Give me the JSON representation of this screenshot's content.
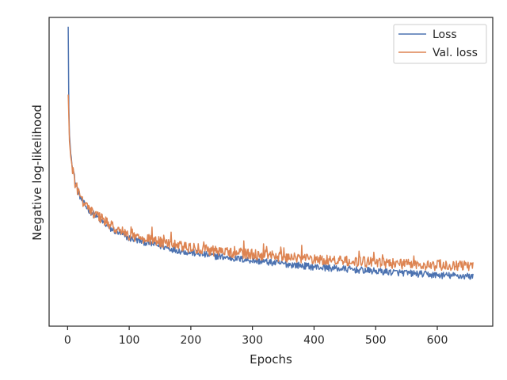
{
  "chart_data": {
    "type": "line",
    "title": "",
    "xlabel": "Epochs",
    "ylabel": "Negative log-likelihood",
    "xlim": [
      -30,
      690
    ],
    "ylim": [
      0.0,
      1.0
    ],
    "x_ticks": [
      0,
      100,
      200,
      300,
      400,
      500,
      600
    ],
    "y_ticks_shown": false,
    "grid": false,
    "legend_position": "top-right",
    "series": [
      {
        "name": "Loss",
        "color": "#4c72b0",
        "x": [
          1,
          2,
          3,
          5,
          8,
          12,
          18,
          25,
          35,
          50,
          70,
          100,
          140,
          180,
          220,
          260,
          300,
          350,
          400,
          450,
          500,
          550,
          600,
          650,
          658
        ],
        "values": [
          0.97,
          0.71,
          0.62,
          0.56,
          0.52,
          0.47,
          0.43,
          0.4,
          0.375,
          0.35,
          0.315,
          0.285,
          0.265,
          0.245,
          0.232,
          0.222,
          0.213,
          0.202,
          0.192,
          0.185,
          0.178,
          0.172,
          0.165,
          0.162,
          0.16
        ]
      },
      {
        "name": "Val. loss",
        "color": "#dd8452",
        "x": [
          1,
          2,
          3,
          5,
          8,
          12,
          18,
          25,
          35,
          50,
          70,
          100,
          140,
          180,
          220,
          260,
          300,
          350,
          400,
          450,
          500,
          550,
          600,
          650,
          658
        ],
        "values": [
          0.75,
          0.68,
          0.6,
          0.55,
          0.51,
          0.465,
          0.43,
          0.4,
          0.378,
          0.355,
          0.325,
          0.295,
          0.277,
          0.26,
          0.248,
          0.24,
          0.233,
          0.225,
          0.217,
          0.211,
          0.206,
          0.201,
          0.197,
          0.195,
          0.195
        ]
      }
    ]
  }
}
